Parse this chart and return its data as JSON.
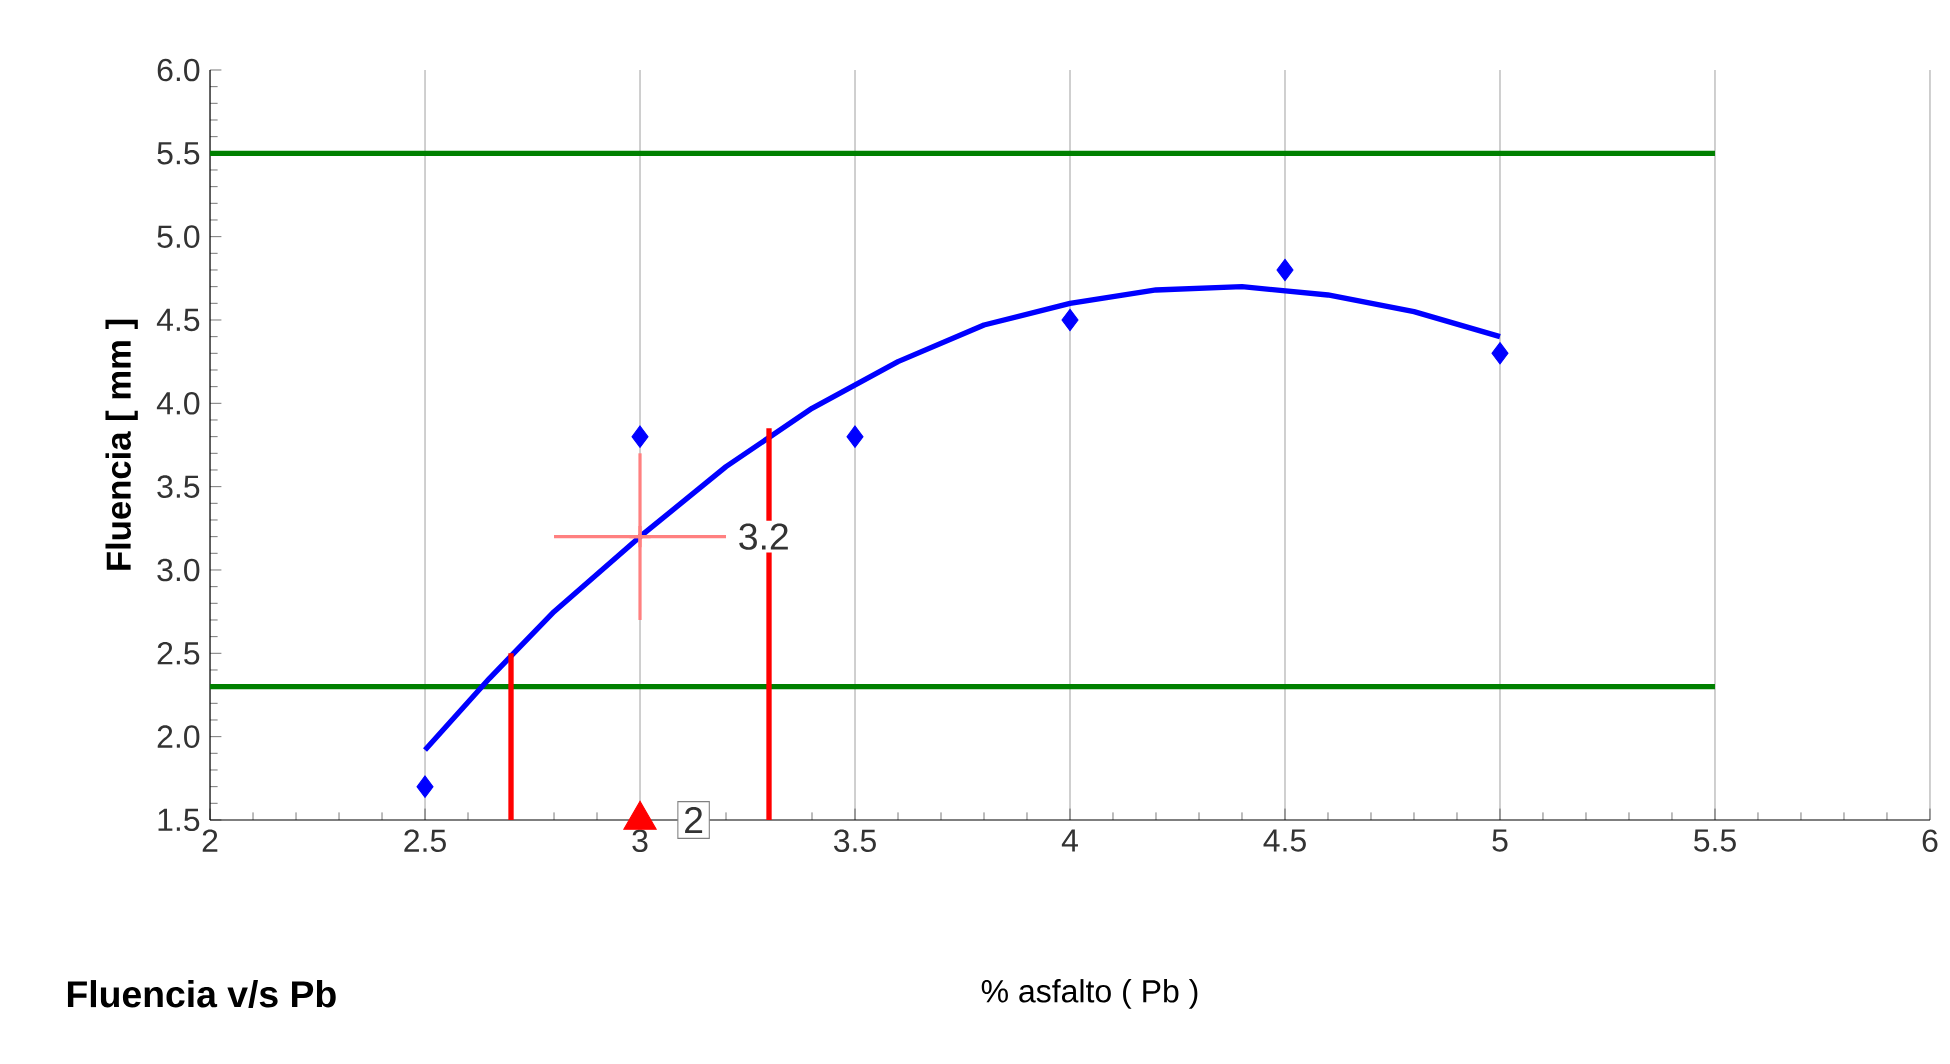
{
  "chart_data": {
    "type": "scatter",
    "title": "Fluencia v/s Pb",
    "xlabel": "% asfalto ( Pb )",
    "ylabel": "Fluencia [ mm ]",
    "xlim": [
      2,
      6
    ],
    "ylim": [
      1.5,
      6
    ],
    "xticks": [
      2,
      2.5,
      3,
      3.5,
      4,
      4.5,
      5,
      5.5,
      6
    ],
    "yticks": [
      1.5,
      {
        "value": 2,
        "label": "2.0"
      },
      2.5,
      {
        "value": 3,
        "label": "3.0"
      },
      3.5,
      {
        "value": 4,
        "label": "4.0"
      },
      4.5,
      {
        "value": 5,
        "label": "5.0"
      },
      5.5,
      {
        "value": 6,
        "label": "6.0"
      }
    ],
    "grid": "x",
    "series": [
      {
        "type": "line",
        "color": "#008000",
        "x": [
          2,
          5.5
        ],
        "values": [
          5.5,
          5.5
        ]
      },
      {
        "type": "line",
        "color": "#008000",
        "x": [
          2,
          5.5
        ],
        "values": [
          2.3,
          2.3
        ]
      },
      {
        "type": "line",
        "color": "#0000ff",
        "x": [
          2.5,
          2.65,
          2.8,
          3,
          3.2,
          3.4,
          3.6,
          3.8,
          4,
          4.2,
          4.4,
          4.6,
          4.8,
          5
        ],
        "values": [
          1.92,
          2.35,
          2.75,
          3.2,
          3.62,
          3.97,
          4.25,
          4.47,
          4.6,
          4.68,
          4.7,
          4.65,
          4.55,
          4.4
        ]
      },
      {
        "marker": "diamond",
        "color": "#0000ff",
        "x": [
          2.5,
          3,
          3.5,
          4,
          4.5,
          5
        ],
        "values": [
          1.7,
          3.8,
          3.8,
          4.5,
          4.8,
          4.3
        ]
      },
      {
        "type": "line",
        "color": "#ff0000",
        "x": [
          2.7,
          2.7
        ],
        "values": [
          1.5,
          2.5
        ]
      },
      {
        "type": "line",
        "color": "#ff0000",
        "x": [
          3.3,
          3.3
        ],
        "values": [
          1.5,
          3.85
        ]
      },
      {
        "marker": "cross",
        "color": "#ff8080",
        "x": [
          3
        ],
        "values": [
          3.2
        ],
        "errors": [
          0.5
        ],
        "xerrors": [
          0.2
        ]
      },
      {
        "marker": "triangle",
        "color": "#ff0000",
        "x": [
          3
        ],
        "values": [
          1.5
        ]
      }
    ],
    "annotations": [
      {
        "text": "3.2",
        "x": 3.22,
        "y": 3.2
      },
      {
        "text": "2",
        "x": 3,
        "y": 1.5
      }
    ]
  }
}
